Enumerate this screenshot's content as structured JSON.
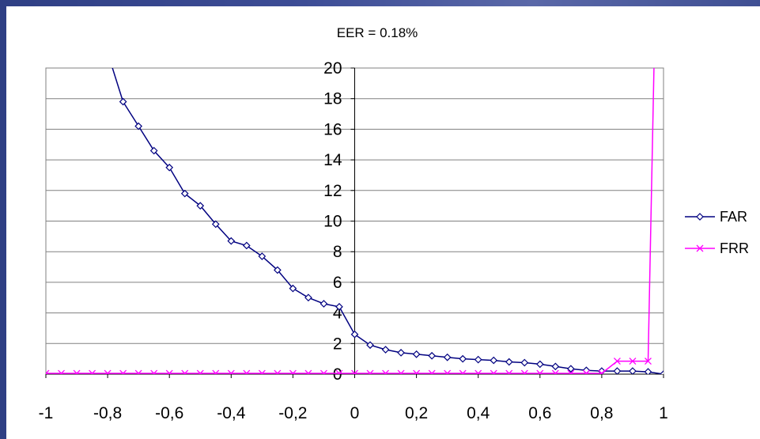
{
  "chart_data": {
    "type": "line",
    "title": "EER = 0.18%",
    "xlabel": "",
    "ylabel": "",
    "xlim": [
      -1,
      1
    ],
    "ylim": [
      0,
      20
    ],
    "y_ticks": [
      "0",
      "2",
      "4",
      "6",
      "8",
      "10",
      "12",
      "14",
      "16",
      "18",
      "20"
    ],
    "x_ticks": [
      "-1",
      "-0,8",
      "-0,6",
      "-0,4",
      "-0,2",
      "0",
      "0,2",
      "0,4",
      "0,6",
      "0,8",
      "1"
    ],
    "grid": "horizontal",
    "legend_position": "right",
    "series": [
      {
        "name": "FAR",
        "color": "#000080",
        "marker": "diamond",
        "points": [
          [
            -0.8,
            21.0
          ],
          [
            -0.75,
            17.8
          ],
          [
            -0.7,
            16.2
          ],
          [
            -0.65,
            14.6
          ],
          [
            -0.6,
            13.5
          ],
          [
            -0.55,
            11.8
          ],
          [
            -0.5,
            11.0
          ],
          [
            -0.45,
            9.8
          ],
          [
            -0.4,
            8.7
          ],
          [
            -0.35,
            8.4
          ],
          [
            -0.3,
            7.7
          ],
          [
            -0.25,
            6.8
          ],
          [
            -0.2,
            5.6
          ],
          [
            -0.15,
            5.0
          ],
          [
            -0.1,
            4.6
          ],
          [
            -0.05,
            4.4
          ],
          [
            0.0,
            2.6
          ],
          [
            0.05,
            1.9
          ],
          [
            0.1,
            1.6
          ],
          [
            0.15,
            1.4
          ],
          [
            0.2,
            1.3
          ],
          [
            0.25,
            1.2
          ],
          [
            0.3,
            1.1
          ],
          [
            0.35,
            1.0
          ],
          [
            0.4,
            0.95
          ],
          [
            0.45,
            0.9
          ],
          [
            0.5,
            0.8
          ],
          [
            0.55,
            0.75
          ],
          [
            0.6,
            0.65
          ],
          [
            0.65,
            0.5
          ],
          [
            0.7,
            0.35
          ],
          [
            0.75,
            0.25
          ],
          [
            0.8,
            0.2
          ],
          [
            0.85,
            0.2
          ],
          [
            0.9,
            0.2
          ],
          [
            0.95,
            0.15
          ],
          [
            1.0,
            0.0
          ]
        ]
      },
      {
        "name": "FRR",
        "color": "#ff00ff",
        "marker": "x",
        "points": [
          [
            -1.0,
            0.05
          ],
          [
            -0.95,
            0.05
          ],
          [
            -0.9,
            0.05
          ],
          [
            -0.85,
            0.05
          ],
          [
            -0.8,
            0.05
          ],
          [
            -0.75,
            0.05
          ],
          [
            -0.7,
            0.05
          ],
          [
            -0.65,
            0.05
          ],
          [
            -0.6,
            0.05
          ],
          [
            -0.55,
            0.05
          ],
          [
            -0.5,
            0.05
          ],
          [
            -0.45,
            0.05
          ],
          [
            -0.4,
            0.05
          ],
          [
            -0.35,
            0.05
          ],
          [
            -0.3,
            0.05
          ],
          [
            -0.25,
            0.05
          ],
          [
            -0.2,
            0.05
          ],
          [
            -0.15,
            0.05
          ],
          [
            -0.1,
            0.05
          ],
          [
            -0.05,
            0.05
          ],
          [
            0.0,
            0.05
          ],
          [
            0.05,
            0.05
          ],
          [
            0.1,
            0.05
          ],
          [
            0.15,
            0.05
          ],
          [
            0.2,
            0.05
          ],
          [
            0.25,
            0.05
          ],
          [
            0.3,
            0.05
          ],
          [
            0.35,
            0.05
          ],
          [
            0.4,
            0.05
          ],
          [
            0.45,
            0.05
          ],
          [
            0.5,
            0.05
          ],
          [
            0.55,
            0.05
          ],
          [
            0.6,
            0.05
          ],
          [
            0.65,
            0.05
          ],
          [
            0.7,
            0.05
          ],
          [
            0.75,
            0.05
          ],
          [
            0.8,
            0.05
          ],
          [
            0.85,
            0.85
          ],
          [
            0.9,
            0.85
          ],
          [
            0.95,
            0.85
          ],
          [
            0.97,
            21.0
          ]
        ]
      }
    ]
  }
}
